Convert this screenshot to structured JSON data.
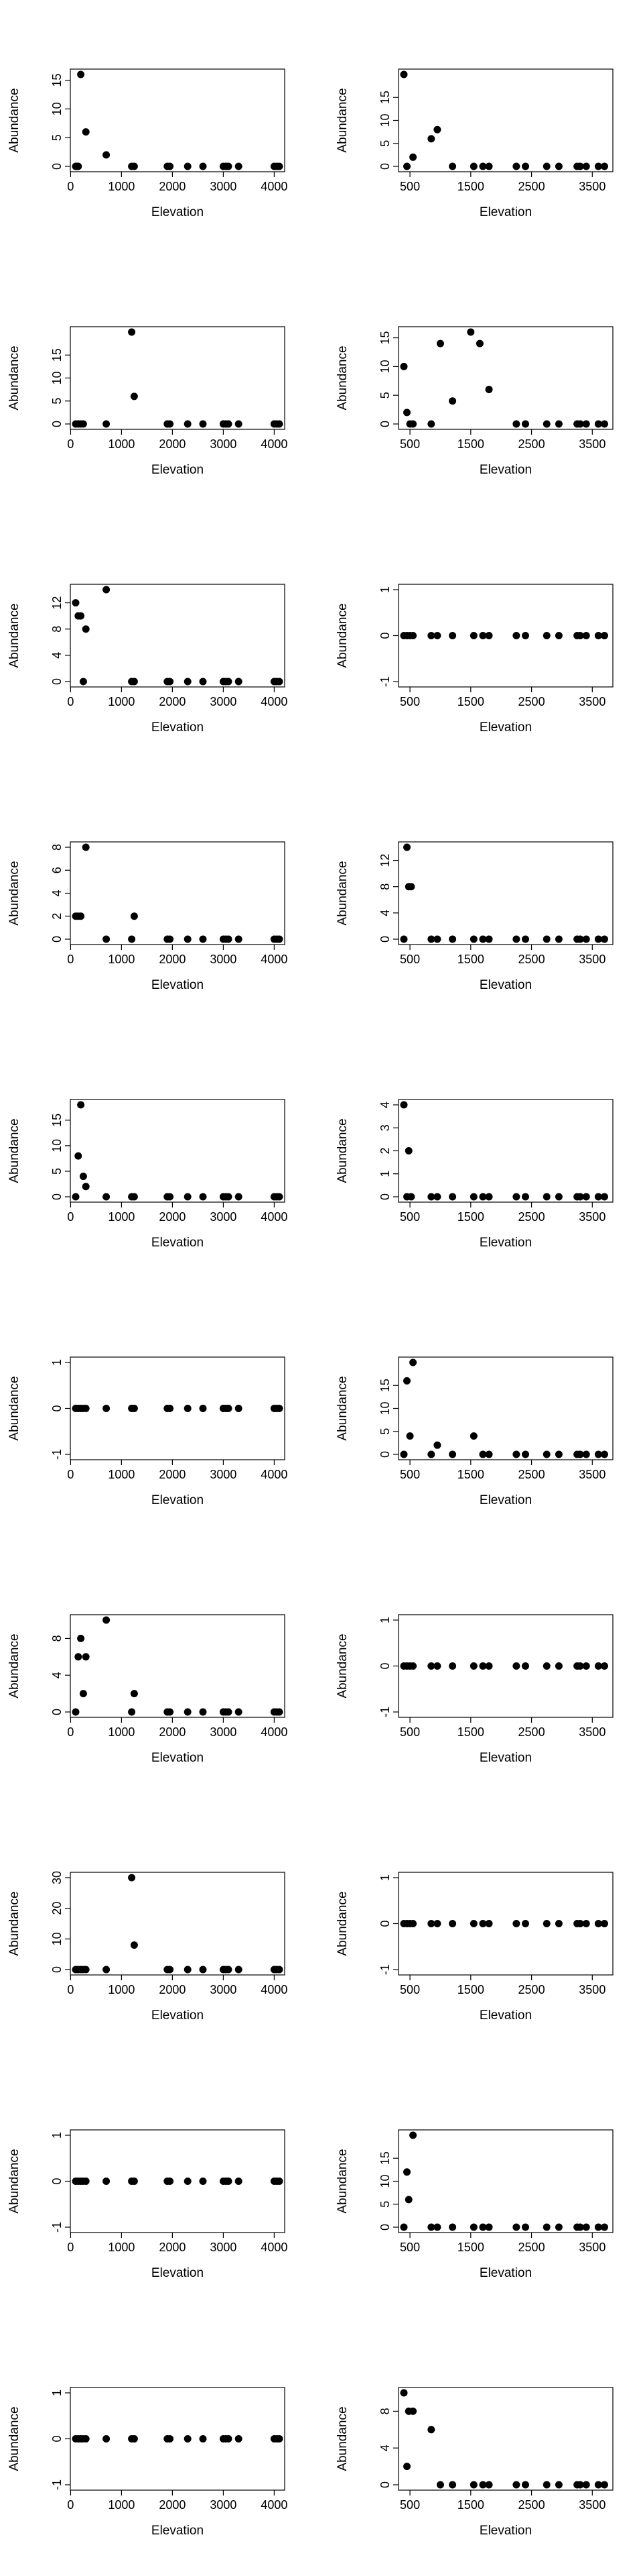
{
  "chart_data": [
    {
      "type": "scatter",
      "xlabel": "Elevation",
      "ylabel": "Abundance",
      "xlim": [
        100,
        4100
      ],
      "ylim": [
        0,
        16
      ],
      "xticks": [
        0,
        1000,
        2000,
        3000,
        4000
      ],
      "yticks": [
        0,
        5,
        10,
        15
      ],
      "x": [
        100,
        120,
        150,
        200,
        300,
        700,
        1200,
        1250,
        1900,
        1950,
        2300,
        2600,
        3000,
        3050,
        3100,
        3300,
        4000,
        4050,
        4100
      ],
      "y": [
        0,
        0,
        0,
        16,
        6,
        2,
        0,
        0,
        0,
        0,
        0,
        0,
        0,
        0,
        0,
        0,
        0,
        0,
        0
      ]
    },
    {
      "type": "scatter",
      "xlabel": "Elevation",
      "ylabel": "Abundance",
      "xlim": [
        400,
        3750
      ],
      "ylim": [
        0,
        20
      ],
      "xticks": [
        500,
        1500,
        2500,
        3500
      ],
      "yticks": [
        0,
        5,
        10,
        15
      ],
      "x": [
        400,
        450,
        550,
        850,
        950,
        1200,
        1550,
        1700,
        1800,
        2250,
        2400,
        2750,
        2950,
        3250,
        3300,
        3400,
        3600,
        3700
      ],
      "y": [
        20,
        0,
        2,
        6,
        8,
        0,
        0,
        0,
        0,
        0,
        0,
        0,
        0,
        0,
        0,
        0,
        0,
        0
      ]
    },
    {
      "type": "scatter",
      "xlabel": "Elevation",
      "ylabel": "Abundance",
      "xlim": [
        100,
        4100
      ],
      "ylim": [
        0,
        20
      ],
      "xticks": [
        0,
        1000,
        2000,
        3000,
        4000
      ],
      "yticks": [
        0,
        5,
        10,
        15
      ],
      "x": [
        100,
        150,
        200,
        250,
        700,
        1200,
        1250,
        1900,
        1950,
        2300,
        2600,
        3000,
        3050,
        3100,
        3300,
        4000,
        4050,
        4100
      ],
      "y": [
        0,
        0,
        0,
        0,
        0,
        20,
        6,
        0,
        0,
        0,
        0,
        0,
        0,
        0,
        0,
        0,
        0,
        0
      ]
    },
    {
      "type": "scatter",
      "xlabel": "Elevation",
      "ylabel": "Abundance",
      "xlim": [
        400,
        3750
      ],
      "ylim": [
        0,
        16
      ],
      "xticks": [
        500,
        1500,
        2500,
        3500
      ],
      "yticks": [
        0,
        5,
        10,
        15
      ],
      "x": [
        400,
        450,
        500,
        550,
        850,
        1000,
        1200,
        1500,
        1650,
        1800,
        2250,
        2400,
        2750,
        2950,
        3250,
        3300,
        3400,
        3600,
        3700
      ],
      "y": [
        10,
        2,
        0,
        0,
        0,
        14,
        4,
        16,
        14,
        6,
        0,
        0,
        0,
        0,
        0,
        0,
        0,
        0,
        0
      ]
    },
    {
      "type": "scatter",
      "xlabel": "Elevation",
      "ylabel": "Abundance",
      "xlim": [
        100,
        4100
      ],
      "ylim": [
        0,
        14
      ],
      "xticks": [
        0,
        1000,
        2000,
        3000,
        4000
      ],
      "yticks": [
        0,
        4,
        8,
        12
      ],
      "x": [
        100,
        150,
        200,
        250,
        300,
        700,
        1200,
        1250,
        1900,
        1950,
        2300,
        2600,
        3000,
        3050,
        3100,
        3300,
        4000,
        4050,
        4100
      ],
      "y": [
        12,
        10,
        10,
        0,
        8,
        14,
        0,
        0,
        0,
        0,
        0,
        0,
        0,
        0,
        0,
        0,
        0,
        0,
        0
      ]
    },
    {
      "type": "scatter",
      "xlabel": "Elevation",
      "ylabel": "Abundance",
      "xlim": [
        400,
        3750
      ],
      "ylim": [
        -1,
        1
      ],
      "xticks": [
        500,
        1500,
        2500,
        3500
      ],
      "yticks": [
        -1,
        0,
        1
      ],
      "x": [
        400,
        450,
        500,
        550,
        850,
        950,
        1200,
        1550,
        1700,
        1800,
        2250,
        2400,
        2750,
        2950,
        3250,
        3300,
        3400,
        3600,
        3700
      ],
      "y": [
        0,
        0,
        0,
        0,
        0,
        0,
        0,
        0,
        0,
        0,
        0,
        0,
        0,
        0,
        0,
        0,
        0,
        0,
        0
      ]
    },
    {
      "type": "scatter",
      "xlabel": "Elevation",
      "ylabel": "Abundance",
      "xlim": [
        100,
        4100
      ],
      "ylim": [
        0,
        8
      ],
      "xticks": [
        0,
        1000,
        2000,
        3000,
        4000
      ],
      "yticks": [
        0,
        2,
        4,
        6,
        8
      ],
      "x": [
        100,
        150,
        200,
        300,
        700,
        1200,
        1250,
        1900,
        1950,
        2300,
        2600,
        3000,
        3050,
        3100,
        3300,
        4000,
        4050,
        4100
      ],
      "y": [
        2,
        2,
        2,
        8,
        0,
        0,
        2,
        0,
        0,
        0,
        0,
        0,
        0,
        0,
        0,
        0,
        0,
        0
      ]
    },
    {
      "type": "scatter",
      "xlabel": "Elevation",
      "ylabel": "Abundance",
      "xlim": [
        400,
        3750
      ],
      "ylim": [
        0,
        14
      ],
      "xticks": [
        500,
        1500,
        2500,
        3500
      ],
      "yticks": [
        0,
        4,
        8,
        12
      ],
      "x": [
        400,
        450,
        480,
        520,
        850,
        950,
        1200,
        1550,
        1700,
        1800,
        2250,
        2400,
        2750,
        2950,
        3250,
        3300,
        3400,
        3600,
        3700
      ],
      "y": [
        0,
        14,
        8,
        8,
        0,
        0,
        0,
        0,
        0,
        0,
        0,
        0,
        0,
        0,
        0,
        0,
        0,
        0,
        0
      ]
    },
    {
      "type": "scatter",
      "xlabel": "Elevation",
      "ylabel": "Abundance",
      "xlim": [
        100,
        4100
      ],
      "ylim": [
        0,
        18
      ],
      "xticks": [
        0,
        1000,
        2000,
        3000,
        4000
      ],
      "yticks": [
        0,
        5,
        10,
        15
      ],
      "x": [
        100,
        150,
        200,
        250,
        300,
        700,
        1200,
        1250,
        1900,
        1950,
        2300,
        2600,
        3000,
        3050,
        3100,
        3300,
        4000,
        4050,
        4100
      ],
      "y": [
        0,
        8,
        18,
        4,
        2,
        0,
        0,
        0,
        0,
        0,
        0,
        0,
        0,
        0,
        0,
        0,
        0,
        0,
        0
      ]
    },
    {
      "type": "scatter",
      "xlabel": "Elevation",
      "ylabel": "Abundance",
      "xlim": [
        400,
        3750
      ],
      "ylim": [
        0,
        4
      ],
      "xticks": [
        500,
        1500,
        2500,
        3500
      ],
      "yticks": [
        0,
        1,
        2,
        3,
        4
      ],
      "x": [
        400,
        450,
        480,
        520,
        850,
        950,
        1200,
        1550,
        1700,
        1800,
        2250,
        2400,
        2750,
        2950,
        3250,
        3300,
        3400,
        3600,
        3700
      ],
      "y": [
        4,
        0,
        2,
        0,
        0,
        0,
        0,
        0,
        0,
        0,
        0,
        0,
        0,
        0,
        0,
        0,
        0,
        0,
        0
      ]
    },
    {
      "type": "scatter",
      "xlabel": "Elevation",
      "ylabel": "Abundance",
      "xlim": [
        100,
        4100
      ],
      "ylim": [
        -1,
        1
      ],
      "xticks": [
        0,
        1000,
        2000,
        3000,
        4000
      ],
      "yticks": [
        -1,
        0,
        1
      ],
      "x": [
        100,
        150,
        200,
        250,
        300,
        700,
        1200,
        1250,
        1900,
        1950,
        2300,
        2600,
        3000,
        3050,
        3100,
        3300,
        4000,
        4050,
        4100
      ],
      "y": [
        0,
        0,
        0,
        0,
        0,
        0,
        0,
        0,
        0,
        0,
        0,
        0,
        0,
        0,
        0,
        0,
        0,
        0,
        0
      ]
    },
    {
      "type": "scatter",
      "xlabel": "Elevation",
      "ylabel": "Abundance",
      "xlim": [
        400,
        3750
      ],
      "ylim": [
        0,
        20
      ],
      "xticks": [
        500,
        1500,
        2500,
        3500
      ],
      "yticks": [
        0,
        5,
        10,
        15
      ],
      "x": [
        400,
        450,
        500,
        550,
        850,
        950,
        1200,
        1550,
        1700,
        1800,
        2250,
        2400,
        2750,
        2950,
        3250,
        3300,
        3400,
        3600,
        3700
      ],
      "y": [
        0,
        16,
        4,
        20,
        0,
        2,
        0,
        4,
        0,
        0,
        0,
        0,
        0,
        0,
        0,
        0,
        0,
        0,
        0
      ]
    },
    {
      "type": "scatter",
      "xlabel": "Elevation",
      "ylabel": "Abundance",
      "xlim": [
        100,
        4100
      ],
      "ylim": [
        0,
        10
      ],
      "xticks": [
        0,
        1000,
        2000,
        3000,
        4000
      ],
      "yticks": [
        0,
        4,
        8
      ],
      "x": [
        100,
        150,
        200,
        250,
        300,
        700,
        1200,
        1250,
        1900,
        1950,
        2300,
        2600,
        3000,
        3050,
        3100,
        3300,
        4000,
        4050,
        4100
      ],
      "y": [
        0,
        6,
        8,
        2,
        6,
        10,
        0,
        2,
        0,
        0,
        0,
        0,
        0,
        0,
        0,
        0,
        0,
        0,
        0
      ]
    },
    {
      "type": "scatter",
      "xlabel": "Elevation",
      "ylabel": "Abundance",
      "xlim": [
        400,
        3750
      ],
      "ylim": [
        -1,
        1
      ],
      "xticks": [
        500,
        1500,
        2500,
        3500
      ],
      "yticks": [
        -1,
        0,
        1
      ],
      "x": [
        400,
        450,
        500,
        550,
        850,
        950,
        1200,
        1550,
        1700,
        1800,
        2250,
        2400,
        2750,
        2950,
        3250,
        3300,
        3400,
        3600,
        3700
      ],
      "y": [
        0,
        0,
        0,
        0,
        0,
        0,
        0,
        0,
        0,
        0,
        0,
        0,
        0,
        0,
        0,
        0,
        0,
        0,
        0
      ]
    },
    {
      "type": "scatter",
      "xlabel": "Elevation",
      "ylabel": "Abundance",
      "xlim": [
        100,
        4100
      ],
      "ylim": [
        0,
        30
      ],
      "xticks": [
        0,
        1000,
        2000,
        3000,
        4000
      ],
      "yticks": [
        0,
        10,
        20,
        30
      ],
      "x": [
        100,
        150,
        200,
        250,
        300,
        700,
        1200,
        1250,
        1900,
        1950,
        2300,
        2600,
        3000,
        3050,
        3100,
        3300,
        4000,
        4050,
        4100
      ],
      "y": [
        0,
        0,
        0,
        0,
        0,
        0,
        30,
        8,
        0,
        0,
        0,
        0,
        0,
        0,
        0,
        0,
        0,
        0,
        0
      ]
    },
    {
      "type": "scatter",
      "xlabel": "Elevation",
      "ylabel": "Abundance",
      "xlim": [
        400,
        3750
      ],
      "ylim": [
        -1,
        1
      ],
      "xticks": [
        500,
        1500,
        2500,
        3500
      ],
      "yticks": [
        -1,
        0,
        1
      ],
      "x": [
        400,
        450,
        500,
        550,
        850,
        950,
        1200,
        1550,
        1700,
        1800,
        2250,
        2400,
        2750,
        2950,
        3250,
        3300,
        3400,
        3600,
        3700
      ],
      "y": [
        0,
        0,
        0,
        0,
        0,
        0,
        0,
        0,
        0,
        0,
        0,
        0,
        0,
        0,
        0,
        0,
        0,
        0,
        0
      ]
    },
    {
      "type": "scatter",
      "xlabel": "Elevation",
      "ylabel": "Abundance",
      "xlim": [
        100,
        4100
      ],
      "ylim": [
        -1,
        1
      ],
      "xticks": [
        0,
        1000,
        2000,
        3000,
        4000
      ],
      "yticks": [
        -1,
        0,
        1
      ],
      "x": [
        100,
        150,
        200,
        250,
        300,
        700,
        1200,
        1250,
        1900,
        1950,
        2300,
        2600,
        3000,
        3050,
        3100,
        3300,
        4000,
        4050,
        4100
      ],
      "y": [
        0,
        0,
        0,
        0,
        0,
        0,
        0,
        0,
        0,
        0,
        0,
        0,
        0,
        0,
        0,
        0,
        0,
        0,
        0
      ]
    },
    {
      "type": "scatter",
      "xlabel": "Elevation",
      "ylabel": "Abundance",
      "xlim": [
        400,
        3750
      ],
      "ylim": [
        0,
        20
      ],
      "xticks": [
        500,
        1500,
        2500,
        3500
      ],
      "yticks": [
        0,
        5,
        10,
        15
      ],
      "x": [
        400,
        450,
        480,
        550,
        850,
        950,
        1200,
        1550,
        1700,
        1800,
        2250,
        2400,
        2750,
        2950,
        3250,
        3300,
        3400,
        3600,
        3700
      ],
      "y": [
        0,
        12,
        6,
        20,
        0,
        0,
        0,
        0,
        0,
        0,
        0,
        0,
        0,
        0,
        0,
        0,
        0,
        0,
        0
      ]
    },
    {
      "type": "scatter",
      "xlabel": "Elevation",
      "ylabel": "Abundance",
      "xlim": [
        100,
        4100
      ],
      "ylim": [
        -1,
        1
      ],
      "xticks": [
        0,
        1000,
        2000,
        3000,
        4000
      ],
      "yticks": [
        -1,
        0,
        1
      ],
      "x": [
        100,
        150,
        200,
        250,
        300,
        700,
        1200,
        1250,
        1900,
        1950,
        2300,
        2600,
        3000,
        3050,
        3100,
        3300,
        4000,
        4050,
        4100
      ],
      "y": [
        0,
        0,
        0,
        0,
        0,
        0,
        0,
        0,
        0,
        0,
        0,
        0,
        0,
        0,
        0,
        0,
        0,
        0,
        0
      ]
    },
    {
      "type": "scatter",
      "xlabel": "Elevation",
      "ylabel": "Abundance",
      "xlim": [
        400,
        3750
      ],
      "ylim": [
        0,
        10
      ],
      "xticks": [
        500,
        1500,
        2500,
        3500
      ],
      "yticks": [
        0,
        4,
        8
      ],
      "x": [
        400,
        450,
        480,
        550,
        850,
        1000,
        1200,
        1550,
        1700,
        1800,
        2250,
        2400,
        2750,
        2950,
        3250,
        3300,
        3400,
        3600,
        3700
      ],
      "y": [
        10,
        2,
        8,
        8,
        6,
        0,
        0,
        0,
        0,
        0,
        0,
        0,
        0,
        0,
        0,
        0,
        0,
        0,
        0
      ]
    }
  ]
}
